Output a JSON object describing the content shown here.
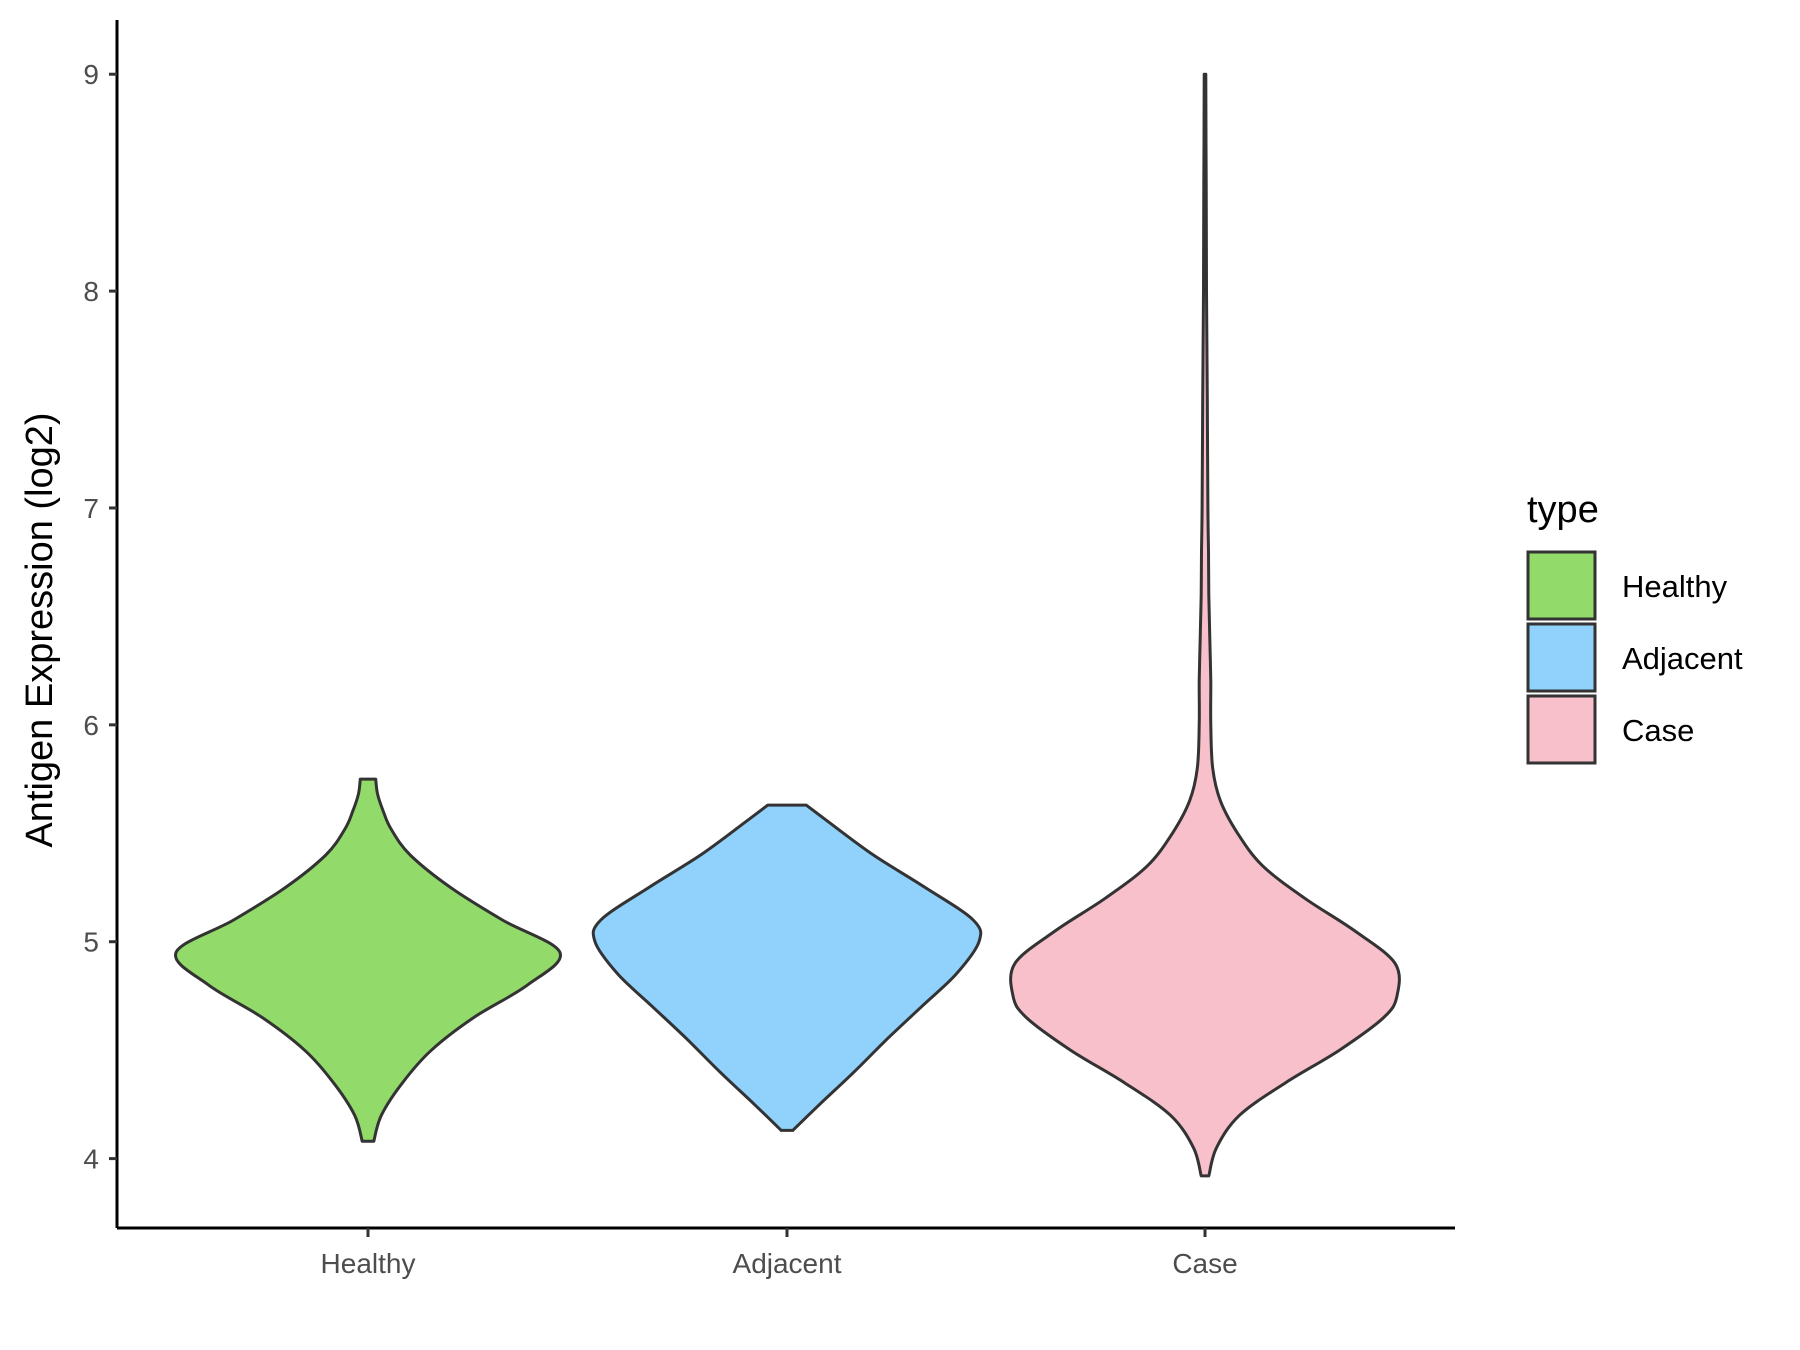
{
  "chart_data": {
    "type": "violin",
    "ylabel": "Antigen Expression (log2)",
    "xlabel": "",
    "categories": [
      "Healthy",
      "Adjacent",
      "Case"
    ],
    "yticks": [
      "4",
      "5",
      "6",
      "7",
      "8",
      "9"
    ],
    "ylim": [
      3.68,
      9.25
    ],
    "grid": false,
    "legend": {
      "title": "type",
      "placement": "right",
      "entries": [
        "Healthy",
        "Adjacent",
        "Case"
      ]
    },
    "colors": {
      "Healthy": "#92db6a",
      "Adjacent": "#91d2fc",
      "Case": "#f7c0cb",
      "outline": "#333333"
    },
    "series": [
      {
        "category": "Healthy",
        "min": 4.08,
        "max": 5.75,
        "density": [
          [
            4.08,
            0.03
          ],
          [
            4.2,
            0.07
          ],
          [
            4.35,
            0.18
          ],
          [
            4.5,
            0.33
          ],
          [
            4.65,
            0.55
          ],
          [
            4.8,
            0.83
          ],
          [
            4.95,
            1.0
          ],
          [
            5.1,
            0.7
          ],
          [
            5.25,
            0.43
          ],
          [
            5.4,
            0.22
          ],
          [
            5.52,
            0.12
          ],
          [
            5.6,
            0.08
          ],
          [
            5.68,
            0.05
          ],
          [
            5.75,
            0.04
          ]
        ]
      },
      {
        "category": "Adjacent",
        "min": 4.13,
        "max": 5.63,
        "density": [
          [
            4.13,
            0.03
          ],
          [
            4.25,
            0.17
          ],
          [
            4.4,
            0.35
          ],
          [
            4.55,
            0.52
          ],
          [
            4.7,
            0.7
          ],
          [
            4.85,
            0.88
          ],
          [
            5.0,
            1.0
          ],
          [
            5.1,
            0.97
          ],
          [
            5.25,
            0.72
          ],
          [
            5.4,
            0.45
          ],
          [
            5.55,
            0.22
          ],
          [
            5.63,
            0.1
          ]
        ]
      },
      {
        "category": "Case",
        "min": 3.92,
        "max": 9.0,
        "density": [
          [
            3.92,
            0.02
          ],
          [
            4.05,
            0.06
          ],
          [
            4.2,
            0.18
          ],
          [
            4.35,
            0.42
          ],
          [
            4.5,
            0.7
          ],
          [
            4.65,
            0.93
          ],
          [
            4.75,
            1.0
          ],
          [
            4.9,
            0.99
          ],
          [
            5.05,
            0.78
          ],
          [
            5.2,
            0.52
          ],
          [
            5.35,
            0.3
          ],
          [
            5.5,
            0.17
          ],
          [
            5.65,
            0.08
          ],
          [
            5.8,
            0.04
          ],
          [
            6.0,
            0.03
          ],
          [
            6.2,
            0.03
          ],
          [
            6.4,
            0.025
          ],
          [
            6.6,
            0.02
          ],
          [
            6.8,
            0.018
          ],
          [
            7.0,
            0.015
          ],
          [
            7.5,
            0.012
          ],
          [
            8.0,
            0.008
          ],
          [
            8.5,
            0.006
          ],
          [
            9.0,
            0.004
          ]
        ]
      }
    ]
  }
}
